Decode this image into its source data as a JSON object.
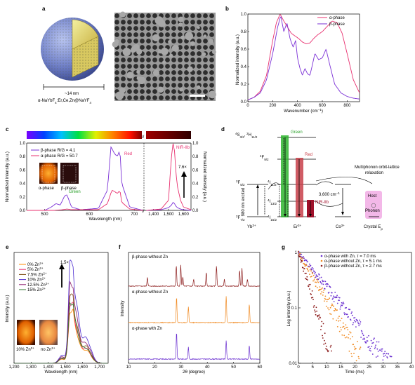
{
  "panels": {
    "a": {
      "label": "a",
      "size_text": "~14 nm",
      "formula_parts": [
        "α-NaYbF",
        "4",
        ":Er,Ce,Zn@NaYF",
        "4"
      ]
    },
    "b": {
      "label": "b",
      "ylabel": "Normalized intensity (a.u.)",
      "xlabel": "Wavenumber (cm",
      "xlabel_sup": "−1",
      "xlabel_end": ")",
      "legend": [
        "α-phase",
        "β-phase"
      ]
    },
    "c": {
      "label": "c",
      "ylabel_left": "Normalized intensity (a.u.)",
      "ylabel_right": "Normalized intensity (a.u.)",
      "xlabel": "Wavelength (nm)",
      "legend": [
        "β-phase R/G = 4.1",
        "α-phase R/G = 50.7"
      ],
      "inset_labels": [
        "α-phase",
        "β-phase"
      ],
      "ann_green": "Green",
      "ann_red": "Red",
      "ann_nir": "NIR-IIb",
      "ann_fold": "7.6×"
    },
    "d": {
      "label": "d",
      "levels_er": [
        {
          "name": "4",
          "base": "S",
          "sub": "3/2",
          "extra": ", ",
          "name2": "2",
          "base2": "H",
          "sub2": "11/2"
        },
        {
          "name": "4",
          "base": "F",
          "sub": "9/2"
        },
        {
          "name": "4",
          "base": "I",
          "sub": "11/2"
        },
        {
          "name": "4",
          "base": "I",
          "sub": "13/2"
        },
        {
          "name": "4",
          "base": "I",
          "sub": "15/2"
        }
      ],
      "levels_yb": [
        {
          "name": "2",
          "base": "F",
          "sub": "5/2"
        },
        {
          "name": "2",
          "base": "F",
          "sub": "7/2"
        }
      ],
      "ion_yb": "Yb",
      "ion_yb_sup": "3+",
      "ion_er": "Er",
      "ion_er_sup": "3+",
      "ion_co": "Co",
      "ion_co_sup": "3+",
      "crystal": "Crystal E",
      "crystal_sub": "p",
      "green": "Green",
      "red": "Red",
      "nir": "NIR-IIb",
      "excite": "980 nm excited",
      "gap": "3,600 cm",
      "gap_sup": "−1",
      "multiphonon_1": "Multiphonon orbit-lattice",
      "multiphonon_2": "relaxation",
      "host": "Host",
      "phonon": "Phonon"
    },
    "e": {
      "label": "e",
      "ylabel": "Intensity (a.u.)",
      "xlabel": "Wavelength (nm)",
      "legend": [
        "0% Zn",
        "5% Zn",
        "7.5% Zn",
        "10% Zn",
        "12.5% Zn",
        "15% Zn"
      ],
      "legend_sup": "2+",
      "fold": "1.5×",
      "inset_labels": [
        "10% Zn",
        "no Zn"
      ],
      "inset_sup": "2+"
    },
    "f": {
      "label": "f",
      "ylabel": "Intensity",
      "xlabel": "2θ (degree)",
      "traces": [
        "β-phase without Zn",
        "α-phase without Zn",
        "α-phase with Zn"
      ]
    },
    "g": {
      "label": "g",
      "ylabel": "Log intensity (a.u.)",
      "xlabel": "Time (ms)",
      "legend": [
        "α-phase with Zn, τ = 7.0 ms",
        "α-phase without Zn, τ = 5.1 ms",
        "β-phase without Zn, τ = 2.7 ms"
      ]
    }
  },
  "colors": {
    "alpha": "#e8306f",
    "beta": "#7a2fd6",
    "dark_red": "#8b1a1a",
    "orange": "#f08a22",
    "purple": "#6a2fd0",
    "green_bar": "#2fb52f",
    "red_bar": "#c8404a",
    "crimson_bar": "#a0102a",
    "host_pink": "#f3b8e8"
  },
  "chart_data": [
    {
      "panel": "b",
      "type": "line",
      "xlabel": "Wavenumber (cm−1)",
      "ylabel": "Normalized intensity (a.u.)",
      "xlim": [
        0,
        900
      ],
      "ylim": [
        0,
        1.0
      ],
      "xticks": [
        0,
        200,
        400,
        600,
        800
      ],
      "yticks": [
        0,
        0.2,
        0.4,
        0.6,
        0.8,
        1.0
      ],
      "series": [
        {
          "name": "α-phase",
          "color": "#e8306f",
          "x": [
            0,
            50,
            100,
            150,
            200,
            230,
            260,
            290,
            320,
            350,
            380,
            410,
            440,
            470,
            500,
            530,
            560,
            600,
            640,
            680,
            720,
            760,
            800,
            850,
            900
          ],
          "y": [
            0.02,
            0.05,
            0.12,
            0.3,
            0.7,
            0.9,
            1.0,
            0.92,
            0.85,
            0.78,
            0.75,
            0.72,
            0.68,
            0.66,
            0.67,
            0.72,
            0.76,
            0.8,
            0.86,
            0.92,
            0.9,
            0.78,
            0.55,
            0.25,
            0.1
          ]
        },
        {
          "name": "β-phase",
          "color": "#7a2fd6",
          "x": [
            0,
            50,
            100,
            150,
            200,
            240,
            265,
            290,
            315,
            340,
            365,
            385,
            400,
            420,
            440,
            460,
            480,
            500,
            520,
            540,
            570,
            600,
            630,
            660,
            700,
            750,
            800,
            850,
            900
          ],
          "y": [
            0.02,
            0.05,
            0.1,
            0.25,
            0.55,
            0.85,
            0.98,
            0.8,
            0.9,
            0.72,
            0.62,
            0.7,
            0.5,
            0.38,
            0.3,
            0.38,
            0.32,
            0.3,
            0.42,
            0.55,
            0.48,
            0.5,
            0.6,
            0.42,
            0.2,
            0.1,
            0.06,
            0.04,
            0.03
          ]
        }
      ]
    },
    {
      "panel": "c",
      "type": "line",
      "xlabel": "Wavelength (nm)",
      "ylabel": "Normalized intensity (a.u.)",
      "xticks": [
        500,
        600,
        700,
        1400,
        1500,
        1600
      ],
      "series": [
        {
          "name": "β-phase R/G = 4.1",
          "color": "#7a2fd6",
          "x": [
            460,
            500,
            515,
            525,
            535,
            545,
            550,
            560,
            580,
            620,
            640,
            648,
            655,
            662,
            668,
            672,
            690,
            720,
            1350,
            1450,
            1500,
            1520,
            1530,
            1540,
            1550,
            1560,
            1580,
            1600,
            1650
          ],
          "y": [
            0,
            0,
            0.05,
            0.1,
            0.08,
            0.22,
            0.23,
            0.05,
            0.01,
            0.03,
            0.3,
            0.95,
            0.85,
            0.8,
            0.9,
            0.4,
            0.05,
            0,
            0,
            0.01,
            0.04,
            0.08,
            0.12,
            0.1,
            0.06,
            0.04,
            0.02,
            0.01,
            0
          ]
        },
        {
          "name": "α-phase R/G = 50.7",
          "color": "#e8306f",
          "x": [
            460,
            520,
            540,
            550,
            560,
            620,
            640,
            650,
            656,
            662,
            668,
            672,
            690,
            720,
            1350,
            1450,
            1500,
            1510,
            1520,
            1530,
            1540,
            1550,
            1560,
            1580,
            1600,
            1650
          ],
          "y": [
            0,
            0,
            0.01,
            0.02,
            0.01,
            0.01,
            0.1,
            0.3,
            0.28,
            0.25,
            0.3,
            0.12,
            0.02,
            0,
            0,
            0.02,
            0.15,
            0.5,
            0.8,
            1.0,
            0.88,
            0.55,
            0.35,
            0.15,
            0.05,
            0.01
          ]
        }
      ]
    },
    {
      "panel": "e",
      "type": "line",
      "xlabel": "Wavelength (nm)",
      "ylabel": "Intensity (a.u.)",
      "xlim": [
        1200,
        1750
      ],
      "xticks": [
        1200,
        1300,
        1400,
        1500,
        1600,
        1700
      ],
      "series": [
        {
          "name": "0% Zn2+",
          "color": "#ff8800",
          "peak": 0.52
        },
        {
          "name": "5% Zn2+",
          "color": "#e8306f",
          "peak": 0.58
        },
        {
          "name": "7.5% Zn2+",
          "color": "#7a4a10",
          "peak": 0.66
        },
        {
          "name": "10% Zn2+",
          "color": "#4b2bd0",
          "peak": 0.98
        },
        {
          "name": "12.5% Zn2+",
          "color": "#8b1a6b",
          "peak": 0.78
        },
        {
          "name": "15% Zn2+",
          "color": "#2f7a2f",
          "peak": 0.6
        }
      ]
    },
    {
      "panel": "f",
      "type": "line",
      "xlabel": "2θ (degree)",
      "ylabel": "Intensity",
      "xlim": [
        10,
        60
      ],
      "xticks": [
        10,
        20,
        30,
        40,
        50,
        60
      ],
      "series": [
        {
          "name": "β-phase without Zn",
          "color": "#8b1a1a",
          "peaks": [
            [
              17.2,
              0.4
            ],
            [
              28.2,
              0.9
            ],
            [
              29.9,
              0.95
            ],
            [
              30.7,
              0.4
            ],
            [
              34.8,
              0.3
            ],
            [
              39.6,
              0.6
            ],
            [
              43.5,
              0.9
            ],
            [
              46.5,
              0.3
            ],
            [
              52.3,
              0.7
            ],
            [
              53.2,
              0.8
            ],
            [
              55.3,
              0.3
            ]
          ]
        },
        {
          "name": "α-phase without Zn",
          "color": "#f08a22",
          "peaks": [
            [
              28.3,
              0.95
            ],
            [
              32.8,
              0.6
            ],
            [
              47.2,
              1.0
            ],
            [
              56.0,
              0.7
            ]
          ]
        },
        {
          "name": "α-phase with Zn",
          "color": "#6a2fd0",
          "peaks": [
            [
              28.3,
              1.0
            ],
            [
              32.8,
              0.45
            ],
            [
              47.2,
              0.7
            ],
            [
              56.0,
              0.5
            ]
          ]
        }
      ]
    },
    {
      "panel": "g",
      "type": "scatter",
      "xlabel": "Time (ms)",
      "ylabel": "Log intensity (a.u.)",
      "xlim": [
        0,
        40
      ],
      "ylim": [
        0.01,
        1
      ],
      "xticks": [
        0,
        5,
        10,
        15,
        20,
        25,
        30,
        35,
        40
      ],
      "yticks": [
        0.01,
        0.1,
        1
      ],
      "series": [
        {
          "name": "α-phase with Zn, τ = 7.0 ms",
          "color": "#6a2fd0",
          "tau": 7.0,
          "xmax": 38
        },
        {
          "name": "α-phase without Zn, τ = 5.1 ms",
          "color": "#f08a22",
          "tau": 5.1,
          "xmax": 22
        },
        {
          "name": "β-phase without Zn, τ = 2.7 ms",
          "color": "#8b1a1a",
          "tau": 2.7,
          "xmax": 12
        }
      ]
    }
  ]
}
